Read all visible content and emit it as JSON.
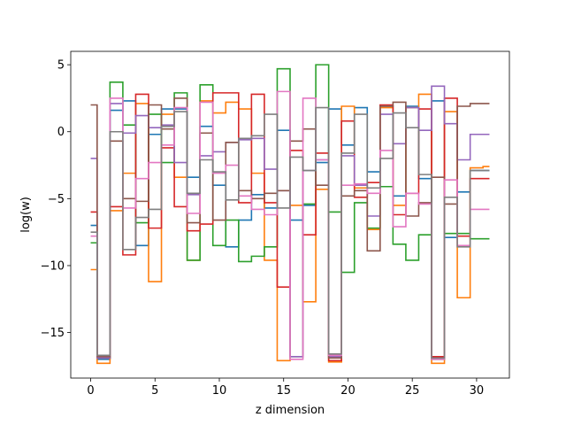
{
  "chart_data": {
    "type": "line",
    "drawstyle": "steps-mid",
    "xlabel": "z dimension",
    "ylabel": "log(w)",
    "xlim": [
      -1.55,
      32.55
    ],
    "ylim": [
      -18.4,
      6.0
    ],
    "xticks": [
      0,
      5,
      10,
      15,
      20,
      25,
      30
    ],
    "yticks": [
      5,
      0,
      -5,
      -10,
      -15
    ],
    "ytick_labels": [
      "5",
      "0",
      "−5",
      "−10",
      "−15"
    ],
    "grid": false,
    "x": [
      0,
      1,
      2,
      3,
      4,
      5,
      6,
      7,
      8,
      9,
      10,
      11,
      12,
      13,
      14,
      15,
      16,
      17,
      18,
      19,
      20,
      21,
      22,
      23,
      24,
      25,
      26,
      27,
      28,
      29,
      30,
      31
    ],
    "series": [
      {
        "color": "#1f77b4",
        "values": [
          -7.0,
          -17.0,
          1.6,
          2.3,
          -8.5,
          -0.2,
          1.7,
          1.7,
          -3.4,
          0.4,
          -4.0,
          -8.6,
          -6.6,
          -4.7,
          -5.7,
          0.1,
          -6.6,
          -5.5,
          -2.3,
          1.7,
          -1.0,
          1.8,
          -3.0,
          1.9,
          -4.8,
          1.9,
          -3.5,
          2.3,
          -7.9,
          -4.5,
          -2.9,
          -2.9
        ]
      },
      {
        "color": "#ff7f0e",
        "values": [
          -10.3,
          -17.3,
          -5.9,
          -3.1,
          2.1,
          -11.2,
          1.3,
          -3.4,
          -9.6,
          2.3,
          1.4,
          2.2,
          1.7,
          -3.1,
          -9.6,
          -17.1,
          -5.5,
          -12.7,
          -4.3,
          -17.2,
          1.9,
          -4.2,
          -7.3,
          1.8,
          -5.5,
          1.8,
          2.8,
          -17.3,
          1.5,
          -12.4,
          -2.7,
          -2.6
        ]
      },
      {
        "color": "#2ca02c",
        "values": [
          -8.3,
          -16.9,
          3.7,
          0.5,
          -6.8,
          1.3,
          -2.3,
          2.9,
          -9.6,
          3.5,
          -8.5,
          -6.6,
          -9.7,
          -9.3,
          -8.6,
          4.7,
          -16.8,
          -5.4,
          5.0,
          -6.0,
          -10.5,
          -5.3,
          -7.2,
          -4.1,
          -8.4,
          -9.6,
          -7.7,
          -17.0,
          -7.6,
          -7.6,
          -8.0,
          -8.0
        ]
      },
      {
        "color": "#d62728",
        "values": [
          -6.0,
          -16.9,
          -5.6,
          -9.2,
          2.8,
          -7.2,
          -1.2,
          -5.6,
          -7.4,
          -6.9,
          2.9,
          2.9,
          -5.3,
          2.8,
          -5.3,
          -11.6,
          -1.4,
          -7.7,
          -1.6,
          -17.1,
          0.8,
          -4.9,
          -3.8,
          2.0,
          -6.2,
          -4.6,
          1.7,
          -16.8,
          2.5,
          -7.8,
          -3.5,
          -3.5
        ]
      },
      {
        "color": "#9467bd",
        "values": [
          -2.0,
          -16.9,
          2.1,
          -0.1,
          1.2,
          0.3,
          0.5,
          -2.3,
          -4.7,
          -1.8,
          -1.5,
          -0.8,
          -0.6,
          -0.5,
          -2.8,
          -4.4,
          -16.8,
          -2.9,
          -2.1,
          -16.8,
          -1.8,
          -4.0,
          -6.3,
          1.3,
          -0.9,
          1.8,
          0.1,
          3.4,
          0.6,
          -2.1,
          -0.2,
          -0.2
        ]
      },
      {
        "color": "#8c564b",
        "values": [
          2.0,
          -16.8,
          -0.7,
          -5.0,
          -5.2,
          2.0,
          0.2,
          2.5,
          -6.8,
          -0.1,
          -6.6,
          -0.8,
          -4.4,
          -5.0,
          -4.6,
          -4.4,
          -0.7,
          0.2,
          -4.0,
          -16.9,
          -4.8,
          -4.4,
          -8.9,
          1.9,
          2.2,
          -6.3,
          -5.3,
          -3.4,
          -5.4,
          1.9,
          2.1,
          2.1
        ]
      },
      {
        "color": "#e377c2",
        "values": [
          -7.8,
          -16.7,
          2.5,
          -5.7,
          -3.5,
          -2.3,
          -1.0,
          1.8,
          -6.1,
          2.2,
          -3.1,
          -2.5,
          -4.8,
          -5.8,
          -6.2,
          3.0,
          -17.0,
          2.5,
          -2.1,
          -16.7,
          -4.0,
          -3.9,
          -4.6,
          -1.4,
          -7.1,
          -4.6,
          -5.4,
          -17.0,
          -3.6,
          -8.5,
          -5.8,
          -5.8
        ]
      },
      {
        "color": "#7f7f7f",
        "values": [
          -7.5,
          -16.7,
          0.0,
          -8.8,
          -6.4,
          -5.8,
          0.4,
          1.5,
          -4.6,
          -2.1,
          -3.0,
          -5.1,
          -0.5,
          -0.3,
          1.3,
          -5.7,
          -1.9,
          -2.9,
          1.8,
          -16.6,
          -1.6,
          1.3,
          -4.2,
          -2.0,
          1.4,
          0.3,
          -3.2,
          -16.9,
          -4.9,
          -8.6,
          -2.9,
          -2.9
        ]
      }
    ]
  }
}
